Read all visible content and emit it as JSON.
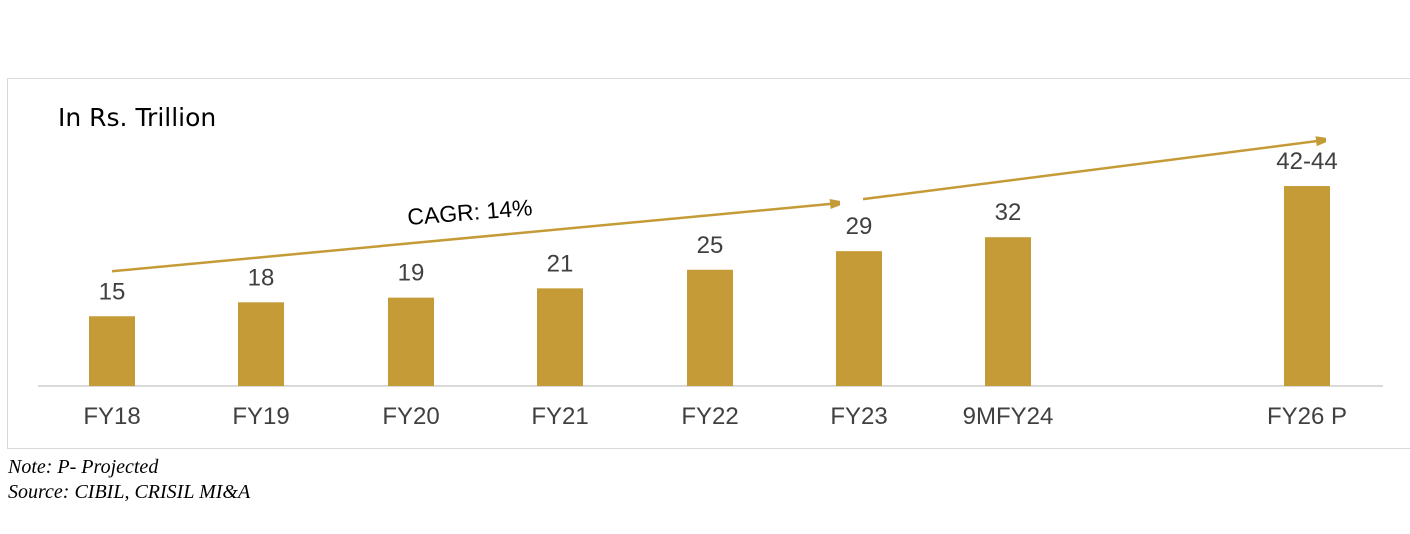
{
  "chart_data": {
    "type": "bar",
    "unit_label": "In Rs. Trillion",
    "categories": [
      "FY18",
      "FY19",
      "FY20",
      "FY21",
      "FY22",
      "FY23",
      "9MFY24",
      "FY26 P"
    ],
    "values": [
      15,
      18,
      19,
      21,
      25,
      29,
      32,
      43
    ],
    "value_labels": [
      "15",
      "18",
      "19",
      "21",
      "25",
      "29",
      "32",
      "42-44"
    ],
    "ylim": [
      0,
      50
    ],
    "grid": false,
    "legend": "none",
    "annotation": "CAGR: 14%",
    "colors": {
      "bar": "#C59B38",
      "arrow": "#C59B38",
      "axis": "#d9d9d9"
    }
  },
  "notes": {
    "note": "Note: P- Projected",
    "source": "Source: CIBIL, CRISIL MI&A"
  }
}
